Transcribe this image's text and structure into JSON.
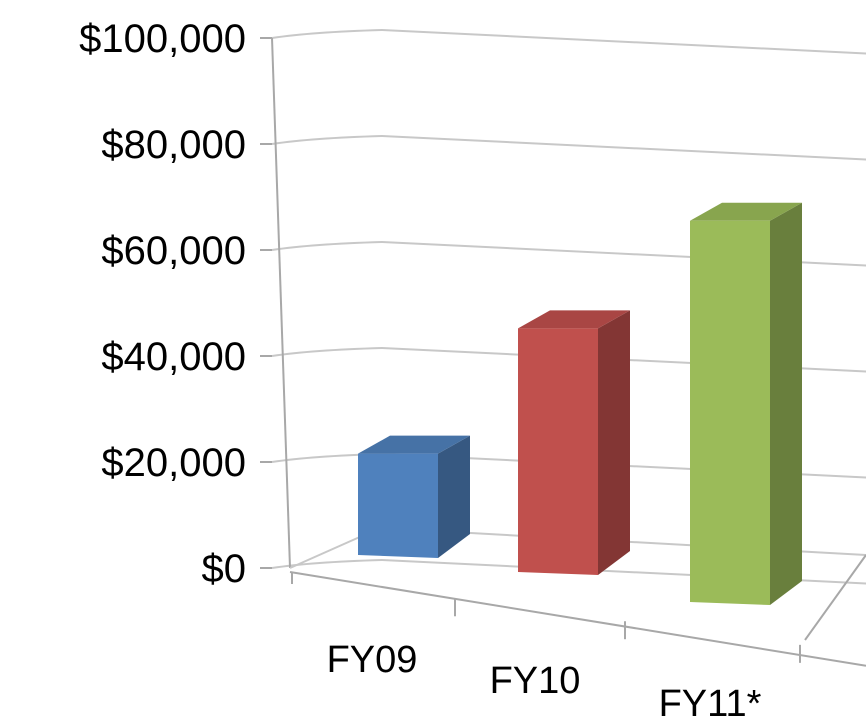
{
  "chart_data": {
    "type": "bar",
    "style": "3d-column",
    "categories": [
      "FY09",
      "FY10",
      "FY11*"
    ],
    "values": [
      22000,
      52000,
      81000
    ],
    "colors": [
      "#4f81bd",
      "#c0504d",
      "#9bbb59"
    ],
    "ylim": [
      0,
      100000
    ],
    "yticks": [
      0,
      20000,
      40000,
      60000,
      80000,
      100000
    ],
    "ytick_labels": [
      "$0",
      "$20,000",
      "$40,000",
      "$60,000",
      "$80,000",
      "$100,000"
    ],
    "grid": true,
    "legend": "none"
  }
}
